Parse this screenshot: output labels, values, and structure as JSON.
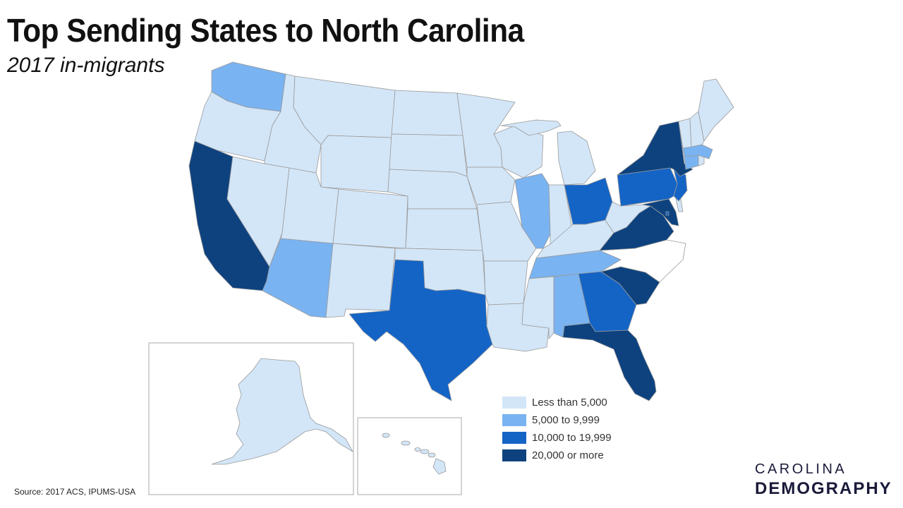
{
  "title": "Top Sending States to North Carolina",
  "subtitle": "2017 in-migrants",
  "source": "Source: 2017 ACS, IPUMS-USA",
  "brand": {
    "top": "CAROLINA",
    "bottom": "DEMOGRAPHY"
  },
  "colors": {
    "less_than_5000": "#d3e6f8",
    "from_5000_to_9999": "#7ab3f1",
    "from_10000_to_19999": "#1464c6",
    "20000_or_more": "#0d427f",
    "north_carolina": "#ffffff",
    "border": "#999999"
  },
  "legend": [
    {
      "label": "Less than 5,000",
      "color": "#d3e6f8"
    },
    {
      "label": "5,000 to 9,999",
      "color": "#7ab3f1"
    },
    {
      "label": "10,000 to 19,999",
      "color": "#1464c6"
    },
    {
      "label": "20,000 or more",
      "color": "#0d427f"
    }
  ],
  "map_data": {
    "type": "choropleth",
    "destination": "North Carolina",
    "categories": [
      "Less than 5,000",
      "5,000 to 9,999",
      "10,000 to 19,999",
      "20,000 or more"
    ],
    "states": {
      "WA": "5,000 to 9,999",
      "OR": "Less than 5,000",
      "CA": "20,000 or more",
      "ID": "Less than 5,000",
      "NV": "Less than 5,000",
      "MT": "Less than 5,000",
      "WY": "Less than 5,000",
      "UT": "Less than 5,000",
      "AZ": "5,000 to 9,999",
      "CO": "Less than 5,000",
      "NM": "Less than 5,000",
      "ND": "Less than 5,000",
      "SD": "Less than 5,000",
      "NE": "Less than 5,000",
      "KS": "Less than 5,000",
      "OK": "Less than 5,000",
      "TX": "10,000 to 19,999",
      "MN": "Less than 5,000",
      "IA": "Less than 5,000",
      "MO": "Less than 5,000",
      "AR": "Less than 5,000",
      "LA": "Less than 5,000",
      "WI": "Less than 5,000",
      "IL": "5,000 to 9,999",
      "MI": "Less than 5,000",
      "IN": "Less than 5,000",
      "OH": "10,000 to 19,999",
      "KY": "Less than 5,000",
      "TN": "5,000 to 9,999",
      "MS": "Less than 5,000",
      "AL": "5,000 to 9,999",
      "GA": "10,000 to 19,999",
      "FL": "20,000 or more",
      "SC": "20,000 or more",
      "VA": "20,000 or more",
      "WV": "Less than 5,000",
      "MD": "20,000 or more",
      "DE": "Less than 5,000",
      "NJ": "10,000 to 19,999",
      "PA": "10,000 to 19,999",
      "NY": "20,000 or more",
      "CT": "5,000 to 9,999",
      "RI": "Less than 5,000",
      "MA": "5,000 to 9,999",
      "VT": "Less than 5,000",
      "NH": "Less than 5,000",
      "ME": "Less than 5,000",
      "AK": "Less than 5,000",
      "HI": "Less than 5,000",
      "DC": "10,000 to 19,999"
    }
  }
}
